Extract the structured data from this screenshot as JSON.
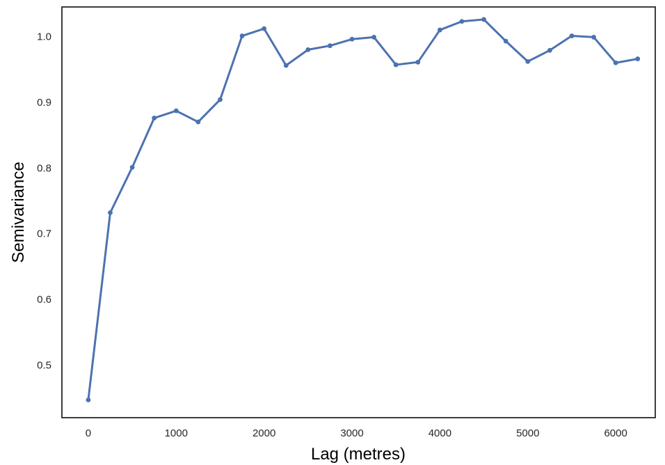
{
  "chart_data": {
    "type": "line",
    "title": "",
    "xlabel": "Lag (metres)",
    "ylabel": "Semivariance",
    "xlim": [
      -300,
      6450
    ],
    "ylim": [
      0.42,
      1.045
    ],
    "x_ticks": [
      0,
      1000,
      2000,
      3000,
      4000,
      5000,
      6000
    ],
    "y_ticks": [
      0.5,
      0.6,
      0.7,
      0.8,
      0.9,
      1.0
    ],
    "x_tick_labels": [
      "0",
      "1000",
      "2000",
      "3000",
      "4000",
      "5000",
      "6000"
    ],
    "y_tick_labels": [
      "0.5",
      "0.6",
      "0.7",
      "0.8",
      "0.9",
      "1.0"
    ],
    "grid": false,
    "series": [
      {
        "color": "#4c72b0",
        "x": [
          0,
          250,
          500,
          750,
          1000,
          1250,
          1500,
          1750,
          2000,
          2250,
          2500,
          2750,
          3000,
          3250,
          3500,
          3750,
          4000,
          4250,
          4500,
          4750,
          5000,
          5250,
          5500,
          5750,
          6000,
          6250
        ],
        "y": [
          0.447,
          0.732,
          0.801,
          0.876,
          0.887,
          0.87,
          0.904,
          1.001,
          1.012,
          0.956,
          0.98,
          0.986,
          0.996,
          0.999,
          0.957,
          0.961,
          1.01,
          1.023,
          1.026,
          0.993,
          0.962,
          0.979,
          1.001,
          0.999,
          0.96,
          0.966
        ]
      }
    ]
  }
}
